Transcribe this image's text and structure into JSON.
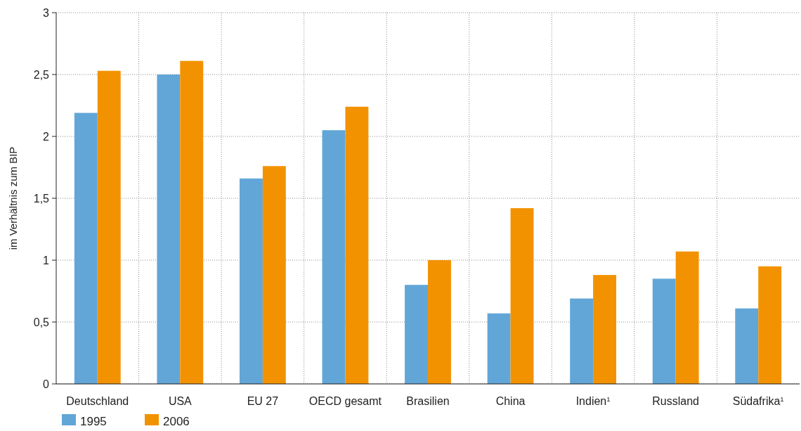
{
  "chart_data": {
    "type": "bar",
    "ylabel": "im Verhältnis zum BIP",
    "categories": [
      "Deutschland",
      "USA",
      "EU 27",
      "OECD gesamt",
      "Brasilien",
      "China",
      "Indien$^{1}$",
      "Russland",
      "Südafrika$^{1}$"
    ],
    "series": [
      {
        "name": "1995",
        "color": "#62a6d8",
        "values": [
          2.19,
          2.5,
          1.66,
          2.05,
          0.8,
          0.57,
          0.69,
          0.85,
          0.61
        ]
      },
      {
        "name": "2006",
        "color": "#f39200",
        "values": [
          2.53,
          2.61,
          1.76,
          2.24,
          1.0,
          1.42,
          0.88,
          1.07,
          0.95
        ]
      }
    ],
    "ylim": [
      0,
      3
    ],
    "yticks": [
      0,
      {
        "value": 0.5,
        "label": "0,5"
      },
      1,
      {
        "value": 1.5,
        "label": "1,5"
      },
      2,
      {
        "value": 2.5,
        "label": "2,5"
      },
      3
    ],
    "grid": true,
    "legend": "bottom left"
  }
}
